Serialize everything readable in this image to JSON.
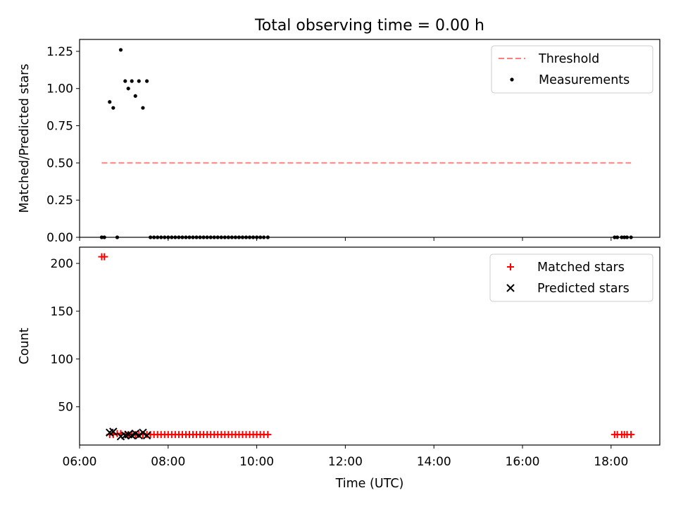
{
  "title": "Total observing time = 0.00 h",
  "xlabel": "Time (UTC)",
  "colors": {
    "threshold": "#ff7f7f",
    "measurement": "#000000",
    "matched": "#ff0000",
    "predicted": "#000000"
  },
  "chart_data": [
    {
      "type": "scatter",
      "panel": "top",
      "ylabel": "Matched/Predicted stars",
      "xlim": [
        6.0,
        19.1
      ],
      "ylim": [
        0,
        1.33
      ],
      "yticks": [
        0.0,
        0.25,
        0.5,
        0.75,
        1.0,
        1.25
      ],
      "ytick_labels": [
        "0.00",
        "0.25",
        "0.50",
        "0.75",
        "1.00",
        "1.25"
      ],
      "xticks": [
        6,
        8,
        10,
        12,
        14,
        16,
        18
      ],
      "legend_position": "top-right",
      "threshold": {
        "name": "Threshold",
        "style": "dashed",
        "x": [
          6.5,
          18.45
        ],
        "y": 0.5
      },
      "series": [
        {
          "name": "Measurements",
          "marker": "dot",
          "points": [
            [
              6.5,
              0.0
            ],
            [
              6.56,
              0.0
            ],
            [
              6.68,
              0.91
            ],
            [
              6.76,
              0.87
            ],
            [
              6.85,
              0.0
            ],
            [
              6.93,
              1.26
            ],
            [
              7.03,
              1.05
            ],
            [
              7.1,
              1.0
            ],
            [
              7.18,
              1.05
            ],
            [
              7.26,
              0.95
            ],
            [
              7.34,
              1.05
            ],
            [
              7.43,
              0.87
            ],
            [
              7.52,
              1.05
            ],
            [
              7.6,
              0.0
            ],
            [
              7.68,
              0.0
            ],
            [
              7.76,
              0.0
            ],
            [
              7.84,
              0.0
            ],
            [
              7.92,
              0.0
            ],
            [
              8.0,
              0.0
            ],
            [
              8.08,
              0.0
            ],
            [
              8.16,
              0.0
            ],
            [
              8.24,
              0.0
            ],
            [
              8.32,
              0.0
            ],
            [
              8.4,
              0.0
            ],
            [
              8.48,
              0.0
            ],
            [
              8.56,
              0.0
            ],
            [
              8.64,
              0.0
            ],
            [
              8.72,
              0.0
            ],
            [
              8.8,
              0.0
            ],
            [
              8.88,
              0.0
            ],
            [
              8.96,
              0.0
            ],
            [
              9.04,
              0.0
            ],
            [
              9.12,
              0.0
            ],
            [
              9.2,
              0.0
            ],
            [
              9.28,
              0.0
            ],
            [
              9.36,
              0.0
            ],
            [
              9.44,
              0.0
            ],
            [
              9.52,
              0.0
            ],
            [
              9.6,
              0.0
            ],
            [
              9.68,
              0.0
            ],
            [
              9.76,
              0.0
            ],
            [
              9.84,
              0.0
            ],
            [
              9.92,
              0.0
            ],
            [
              10.0,
              0.0
            ],
            [
              10.08,
              0.0
            ],
            [
              10.16,
              0.0
            ],
            [
              10.25,
              0.0
            ],
            [
              18.08,
              0.0
            ],
            [
              18.14,
              0.0
            ],
            [
              18.24,
              0.0
            ],
            [
              18.3,
              0.0
            ],
            [
              18.36,
              0.0
            ],
            [
              18.45,
              0.0
            ]
          ]
        }
      ]
    },
    {
      "type": "scatter",
      "panel": "bottom",
      "ylabel": "Count",
      "xlabel": "Time (UTC)",
      "xlim": [
        6.0,
        19.1
      ],
      "ylim": [
        10,
        217
      ],
      "yticks": [
        50,
        100,
        150,
        200
      ],
      "ytick_labels": [
        "50",
        "100",
        "150",
        "200"
      ],
      "xticks": [
        6,
        8,
        10,
        12,
        14,
        16,
        18
      ],
      "xtick_labels": [
        "06:00",
        "08:00",
        "10:00",
        "12:00",
        "14:00",
        "16:00",
        "18:00"
      ],
      "legend_position": "top-right",
      "series": [
        {
          "name": "Matched stars",
          "marker": "plus",
          "points": [
            [
              6.5,
              207
            ],
            [
              6.56,
              207
            ],
            [
              6.68,
              21
            ],
            [
              6.76,
              21
            ],
            [
              6.85,
              22
            ],
            [
              6.93,
              22
            ],
            [
              7.03,
              21
            ],
            [
              7.1,
              21
            ],
            [
              7.18,
              21
            ],
            [
              7.26,
              21
            ],
            [
              7.34,
              21
            ],
            [
              7.43,
              21
            ],
            [
              7.52,
              21
            ],
            [
              7.6,
              21
            ],
            [
              7.68,
              21
            ],
            [
              7.76,
              21
            ],
            [
              7.84,
              21
            ],
            [
              7.92,
              21
            ],
            [
              8.0,
              21
            ],
            [
              8.08,
              21
            ],
            [
              8.16,
              21
            ],
            [
              8.24,
              21
            ],
            [
              8.32,
              21
            ],
            [
              8.4,
              21
            ],
            [
              8.48,
              21
            ],
            [
              8.56,
              21
            ],
            [
              8.64,
              21
            ],
            [
              8.72,
              21
            ],
            [
              8.8,
              21
            ],
            [
              8.88,
              21
            ],
            [
              8.96,
              21
            ],
            [
              9.04,
              21
            ],
            [
              9.12,
              21
            ],
            [
              9.2,
              21
            ],
            [
              9.28,
              21
            ],
            [
              9.36,
              21
            ],
            [
              9.44,
              21
            ],
            [
              9.52,
              21
            ],
            [
              9.6,
              21
            ],
            [
              9.68,
              21
            ],
            [
              9.76,
              21
            ],
            [
              9.84,
              21
            ],
            [
              9.92,
              21
            ],
            [
              10.0,
              21
            ],
            [
              10.08,
              21
            ],
            [
              10.16,
              21
            ],
            [
              10.25,
              21
            ],
            [
              18.08,
              21
            ],
            [
              18.14,
              21
            ],
            [
              18.24,
              21
            ],
            [
              18.3,
              21
            ],
            [
              18.36,
              21
            ],
            [
              18.45,
              21
            ]
          ]
        },
        {
          "name": "Predicted stars",
          "marker": "x",
          "points": [
            [
              6.68,
              23
            ],
            [
              6.76,
              24
            ],
            [
              6.93,
              19
            ],
            [
              7.03,
              20
            ],
            [
              7.1,
              21
            ],
            [
              7.18,
              20
            ],
            [
              7.26,
              22
            ],
            [
              7.34,
              20
            ],
            [
              7.43,
              23
            ],
            [
              7.52,
              20
            ]
          ]
        }
      ]
    }
  ]
}
